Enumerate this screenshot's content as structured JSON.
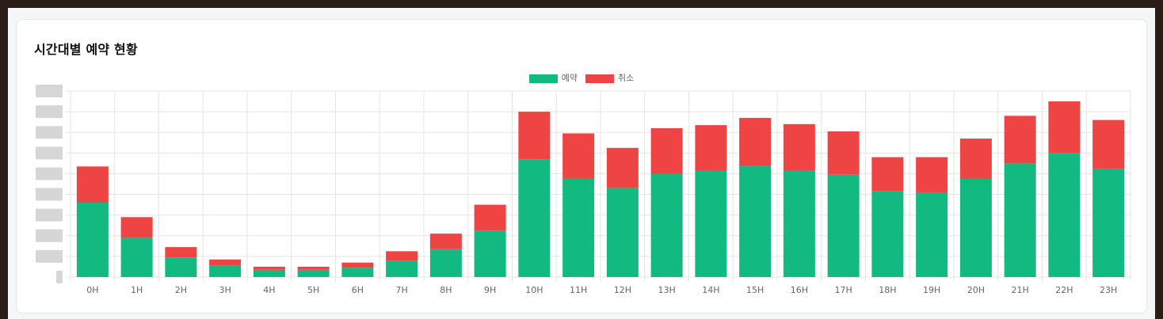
{
  "card": {
    "title": "시간대별 예약 현황"
  },
  "colors": {
    "reservation": "#12b981",
    "cancel": "#ef4444",
    "grid": "#e5e5e5",
    "tick_text": "#666666"
  },
  "chart_data": {
    "type": "bar",
    "stacked": true,
    "categories": [
      "0H",
      "1H",
      "2H",
      "3H",
      "4H",
      "5H",
      "6H",
      "7H",
      "8H",
      "9H",
      "10H",
      "11H",
      "12H",
      "13H",
      "14H",
      "15H",
      "16H",
      "17H",
      "18H",
      "19H",
      "20H",
      "21H",
      "22H",
      "23H"
    ],
    "series": [
      {
        "name": "예약",
        "color": "#12b981",
        "values": [
          36,
          19,
          9.5,
          5.5,
          3.5,
          3.5,
          4.5,
          8,
          13.5,
          22.5,
          57,
          47.5,
          43,
          50,
          51.5,
          54,
          51.5,
          49.5,
          41.5,
          41,
          47.5,
          55,
          60,
          52.5
        ]
      },
      {
        "name": "취소",
        "color": "#ef4444",
        "values": [
          17.5,
          10,
          5,
          3,
          1.5,
          1.5,
          2.5,
          4.5,
          7.5,
          12.5,
          23,
          22,
          19.5,
          22,
          22,
          23,
          22.5,
          21,
          16.5,
          17,
          19.5,
          23,
          25,
          23.5
        ]
      }
    ],
    "ylim": [
      0,
      90
    ],
    "yticks": [
      0,
      10,
      20,
      30,
      40,
      50,
      60,
      70,
      80,
      90
    ],
    "ytick_labels_obscured": true,
    "grid": true,
    "legend": "top-center"
  }
}
